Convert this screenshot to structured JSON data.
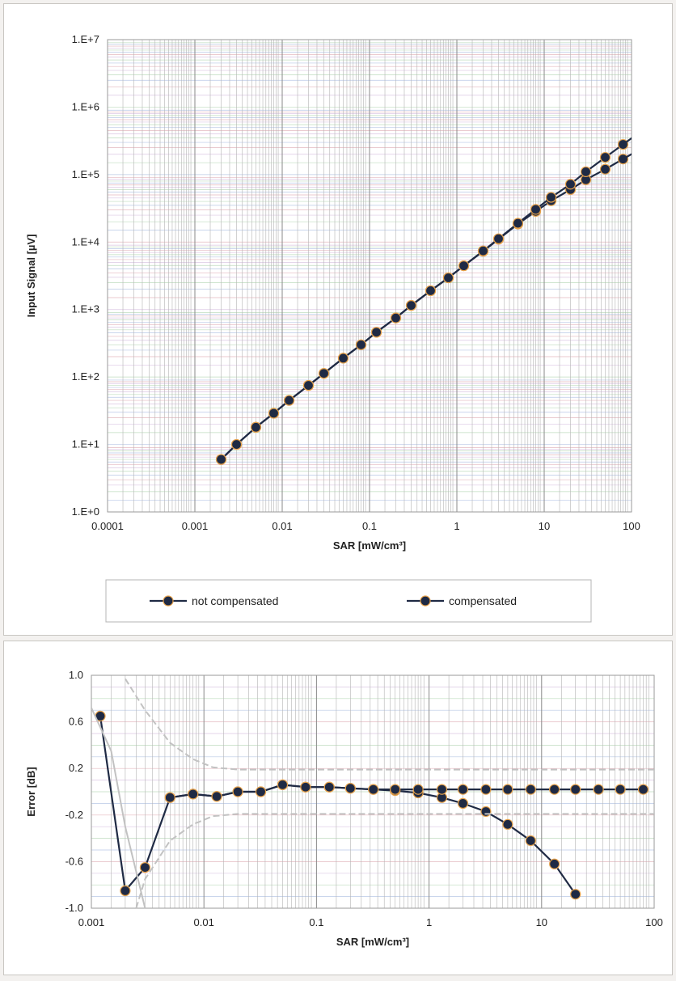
{
  "chart_data": [
    {
      "type": "line",
      "title": "",
      "xlabel": "SAR [mW/cm³]",
      "ylabel": "Input Signal [µV]",
      "x_scale": "log",
      "y_scale": "log",
      "xlim": [
        0.0001,
        100
      ],
      "ylim": [
        1,
        10000000
      ],
      "grid": true,
      "legend_position": "bottom",
      "x_tick_labels": [
        "0.0001",
        "0.001",
        "0.01",
        "0.1",
        "1",
        "10",
        "100"
      ],
      "y_tick_labels": [
        "1.E+0",
        "1.E+1",
        "1.E+2",
        "1.E+3",
        "1.E+4",
        "1.E+5",
        "1.E+6",
        "1.E+7"
      ],
      "series": [
        {
          "name": "not compensated",
          "color": "#1f2a44",
          "x": [
            0.002,
            0.003,
            0.005,
            0.008,
            0.012,
            0.02,
            0.03,
            0.05,
            0.08,
            0.12,
            0.2,
            0.3,
            0.5,
            0.8,
            1.2,
            2,
            3,
            5,
            8,
            12,
            20,
            30,
            50,
            80
          ],
          "y": [
            6,
            10,
            18,
            29,
            45,
            75,
            113,
            190,
            300,
            460,
            750,
            1150,
            1900,
            2950,
            4450,
            7300,
            11000,
            18500,
            28500,
            41000,
            60000,
            84000,
            120000,
            170000
          ]
        },
        {
          "name": "compensated",
          "color": "#1f2a44",
          "x": [
            0.002,
            0.003,
            0.005,
            0.008,
            0.012,
            0.02,
            0.03,
            0.05,
            0.08,
            0.12,
            0.2,
            0.3,
            0.5,
            0.8,
            1.2,
            2,
            3,
            5,
            8,
            12,
            20,
            30,
            50,
            80
          ],
          "y": [
            6,
            10,
            18,
            29,
            45,
            75,
            113,
            190,
            300,
            460,
            750,
            1150,
            1900,
            2950,
            4450,
            7400,
            11200,
            19000,
            30500,
            46000,
            72000,
            110000,
            180000,
            280000
          ]
        }
      ]
    },
    {
      "type": "line",
      "title": "",
      "xlabel": "SAR [mW/cm³]",
      "ylabel": "Error [dB]",
      "x_scale": "log",
      "y_scale": "linear",
      "xlim": [
        0.001,
        100
      ],
      "ylim": [
        -1.0,
        1.0
      ],
      "grid": true,
      "x_tick_labels": [
        "0.001",
        "0.01",
        "0.1",
        "1",
        "10",
        "100"
      ],
      "y_tick_labels": [
        "1.0",
        "0.6",
        "0.2",
        "-0.2",
        "-0.6",
        "-1.0"
      ],
      "series": [
        {
          "color": "#1f2a44",
          "x": [
            0.0012,
            0.002,
            0.003,
            0.005,
            0.008,
            0.013,
            0.02,
            0.032,
            0.05,
            0.08,
            0.13,
            0.2,
            0.32,
            0.5,
            0.8,
            1.3,
            2,
            3.2,
            5,
            8,
            13,
            20
          ],
          "y": [
            0.65,
            -0.85,
            -0.65,
            -0.05,
            -0.02,
            -0.04,
            0.0,
            0.0,
            0.06,
            0.04,
            0.04,
            0.03,
            0.02,
            0.01,
            -0.01,
            -0.05,
            -0.1,
            -0.17,
            -0.28,
            -0.42,
            -0.62,
            -0.88
          ]
        },
        {
          "color": "#1f2a44",
          "x": [
            0.005,
            0.008,
            0.013,
            0.02,
            0.032,
            0.05,
            0.08,
            0.13,
            0.2,
            0.32,
            0.5,
            0.8,
            1.3,
            2,
            3.2,
            5,
            8,
            13,
            20,
            32,
            50,
            80
          ],
          "y": [
            -0.05,
            -0.02,
            -0.04,
            0.0,
            0.0,
            0.06,
            0.04,
            0.04,
            0.03,
            0.02,
            0.02,
            0.02,
            0.02,
            0.02,
            0.02,
            0.02,
            0.02,
            0.02,
            0.02,
            0.02,
            0.02,
            0.02
          ]
        },
        {
          "color": "#c2c2c2",
          "x": [
            0.001,
            0.0015,
            0.002,
            0.003
          ],
          "y": [
            0.72,
            0.35,
            -0.3,
            -1.0
          ]
        },
        {
          "color": "#c2c2c2",
          "x": [
            0.002,
            0.003,
            0.005,
            0.008,
            0.012,
            0.02,
            0.05,
            0.2,
            1,
            10,
            100
          ],
          "y": [
            0.97,
            0.7,
            0.42,
            0.28,
            0.21,
            0.19,
            0.19,
            0.19,
            0.19,
            0.19,
            0.19
          ]
        },
        {
          "color": "#c2c2c2",
          "x": [
            0.0025,
            0.003,
            0.005,
            0.008,
            0.012,
            0.02,
            0.05,
            0.2,
            1,
            10,
            100
          ],
          "y": [
            -1.0,
            -0.75,
            -0.42,
            -0.28,
            -0.21,
            -0.19,
            -0.19,
            -0.19,
            -0.19,
            -0.19,
            -0.19
          ]
        }
      ]
    }
  ]
}
